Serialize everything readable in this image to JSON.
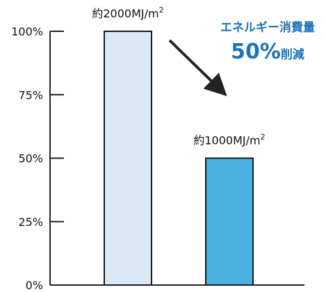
{
  "chart_data": {
    "type": "bar",
    "categories": [
      "",
      ""
    ],
    "values": [
      100,
      50
    ],
    "ylim": [
      0,
      100
    ],
    "yticks": [
      0,
      25,
      50,
      75,
      100
    ],
    "ytick_labels": [
      "0%",
      "25%",
      "50%",
      "75%",
      "100%"
    ],
    "grid": false,
    "bar_colors": [
      "#dbe9f7",
      "#48b1e2"
    ],
    "bar_edge_color": "#1a1a1a",
    "data_labels": [
      {
        "prefix": "約2000MJ/m",
        "sup": "2"
      },
      {
        "prefix": "約1000MJ/m",
        "sup": "2"
      }
    ],
    "annotation": {
      "line1": "エネルギー消費量",
      "percent": "50%",
      "suffix": "削減",
      "color": "#1f73b7"
    }
  }
}
